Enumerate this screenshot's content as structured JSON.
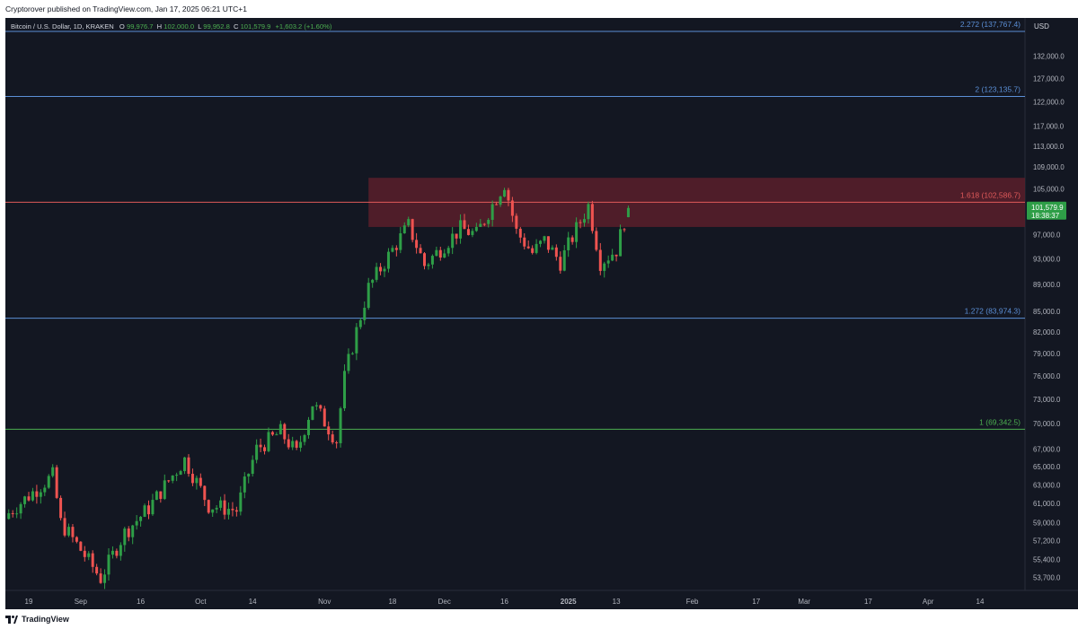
{
  "header": {
    "published": "Cryptorover published on TradingView.com, Jan 17, 2025 06:21 UTC+1"
  },
  "legend": {
    "symbol": "Bitcoin / U.S. Dollar, 1D, KRAKEN",
    "o_label": "O",
    "o_value": "99,976.7",
    "h_label": "H",
    "h_value": "102,000.0",
    "l_label": "L",
    "l_value": "99,952.8",
    "c_label": "C",
    "c_value": "101,579.9",
    "change": "+1,603.2 (+1.60%)"
  },
  "footer": {
    "brand": "TradingView"
  },
  "colors": {
    "background": "#131722",
    "up": "#26a69a",
    "up_body": "#2e9e47",
    "down": "#ef5350",
    "zone_fill": "#5a1f2a",
    "fib_blue": "#5b8fd6",
    "fib_red": "#e05a5a",
    "fib_green": "#4caf50",
    "axis_text": "#b2b5be"
  },
  "chart_data": {
    "type": "candlestick",
    "currency": "USD",
    "current_price": "101,579.9",
    "countdown": "18:38:37",
    "y_scale": "log",
    "ylim": [
      52500,
      141000
    ],
    "y_ticks": [
      {
        "value": 132000,
        "label": "132,000.0"
      },
      {
        "value": 127000,
        "label": "127,000.0"
      },
      {
        "value": 122000,
        "label": "122,000.0"
      },
      {
        "value": 117000,
        "label": "117,000.0"
      },
      {
        "value": 113000,
        "label": "113,000.0"
      },
      {
        "value": 109000,
        "label": "109,000.0"
      },
      {
        "value": 105000,
        "label": "105,000.0"
      },
      {
        "value": 97000,
        "label": "97,000.0"
      },
      {
        "value": 93000,
        "label": "93,000.0"
      },
      {
        "value": 89000,
        "label": "89,000.0"
      },
      {
        "value": 85000,
        "label": "85,000.0"
      },
      {
        "value": 82000,
        "label": "82,000.0"
      },
      {
        "value": 79000,
        "label": "79,000.0"
      },
      {
        "value": 76000,
        "label": "76,000.0"
      },
      {
        "value": 73000,
        "label": "73,000.0"
      },
      {
        "value": 70000,
        "label": "70,000.0"
      },
      {
        "value": 67000,
        "label": "67,000.0"
      },
      {
        "value": 65000,
        "label": "65,000.0"
      },
      {
        "value": 63000,
        "label": "63,000.0"
      },
      {
        "value": 61000,
        "label": "61,000.0"
      },
      {
        "value": 59000,
        "label": "59,000.0"
      },
      {
        "value": 57200,
        "label": "57,200.0"
      },
      {
        "value": 55400,
        "label": "55,400.0"
      },
      {
        "value": 53700,
        "label": "53,700.0"
      }
    ],
    "x_ticks": [
      {
        "date": "2024-08-19",
        "label": "19"
      },
      {
        "date": "2024-09-01",
        "label": "Sep"
      },
      {
        "date": "2024-09-16",
        "label": "16"
      },
      {
        "date": "2024-10-01",
        "label": "Oct"
      },
      {
        "date": "2024-10-14",
        "label": "14"
      },
      {
        "date": "2024-11-01",
        "label": "Nov"
      },
      {
        "date": "2024-11-18",
        "label": "18"
      },
      {
        "date": "2024-12-01",
        "label": "Dec"
      },
      {
        "date": "2024-12-16",
        "label": "16"
      },
      {
        "date": "2025-01-01",
        "label": "2025"
      },
      {
        "date": "2025-01-13",
        "label": "13"
      },
      {
        "date": "2025-02-01",
        "label": "Feb"
      },
      {
        "date": "2025-02-17",
        "label": "17"
      },
      {
        "date": "2025-03-01",
        "label": "Mar"
      },
      {
        "date": "2025-03-17",
        "label": "17"
      },
      {
        "date": "2025-04-01",
        "label": "Apr"
      },
      {
        "date": "2025-04-14",
        "label": "14"
      }
    ],
    "fib_levels": [
      {
        "value": 137767.4,
        "label": "2.272 (137,767.4)",
        "color": "#5b8fd6"
      },
      {
        "value": 123135.7,
        "label": "2 (123,135.7)",
        "color": "#5b8fd6"
      },
      {
        "value": 102586.7,
        "label": "1.618 (102,586.7)",
        "color": "#e05a5a"
      },
      {
        "value": 83974.3,
        "label": "1.272 (83,974.3)",
        "color": "#5b8fd6"
      },
      {
        "value": 69342.5,
        "label": "1 (69,342.5)",
        "color": "#4caf50"
      }
    ],
    "zone": {
      "from_date": "2024-11-12",
      "to_date": "2025-04-30",
      "high": 107000,
      "low": 98300
    },
    "anchors": [
      {
        "date": "2024-08-14",
        "value": 60000
      },
      {
        "date": "2024-08-25",
        "value": 64000
      },
      {
        "date": "2024-08-27",
        "value": 59000
      },
      {
        "date": "2024-09-06",
        "value": 53600
      },
      {
        "date": "2024-09-12",
        "value": 58000
      },
      {
        "date": "2024-09-18",
        "value": 60500
      },
      {
        "date": "2024-09-27",
        "value": 65800
      },
      {
        "date": "2024-10-03",
        "value": 60800
      },
      {
        "date": "2024-10-10",
        "value": 60300
      },
      {
        "date": "2024-10-15",
        "value": 67000
      },
      {
        "date": "2024-10-21",
        "value": 69000
      },
      {
        "date": "2024-10-25",
        "value": 66500
      },
      {
        "date": "2024-10-29",
        "value": 72500
      },
      {
        "date": "2024-11-04",
        "value": 68000
      },
      {
        "date": "2024-11-06",
        "value": 75800
      },
      {
        "date": "2024-11-12",
        "value": 88500
      },
      {
        "date": "2024-11-22",
        "value": 98500
      },
      {
        "date": "2024-11-26",
        "value": 92000
      },
      {
        "date": "2024-12-05",
        "value": 98000
      },
      {
        "date": "2024-12-09",
        "value": 97000
      },
      {
        "date": "2024-12-16",
        "value": 106000
      },
      {
        "date": "2024-12-19",
        "value": 97500
      },
      {
        "date": "2024-12-23",
        "value": 94000
      },
      {
        "date": "2024-12-26",
        "value": 96000
      },
      {
        "date": "2024-12-30",
        "value": 92500
      },
      {
        "date": "2025-01-06",
        "value": 102000
      },
      {
        "date": "2025-01-09",
        "value": 92500
      },
      {
        "date": "2025-01-13",
        "value": 94500
      },
      {
        "date": "2025-01-16",
        "value": 101580
      }
    ]
  }
}
